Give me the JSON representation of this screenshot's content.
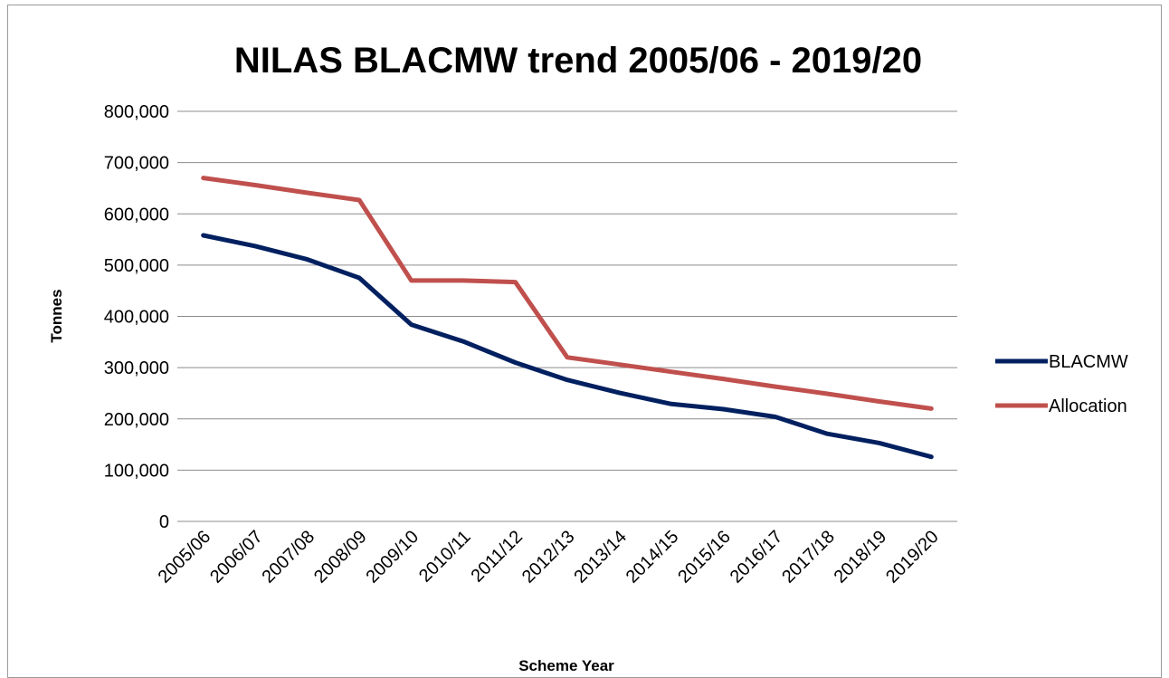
{
  "chart_data": {
    "type": "line",
    "title": "NILAS BLACMW trend 2005/06 - 2019/20",
    "xlabel": "Scheme Year",
    "ylabel": "Tonnes",
    "ylim": [
      0,
      800000
    ],
    "yticks": [
      0,
      100000,
      200000,
      300000,
      400000,
      500000,
      600000,
      700000,
      800000
    ],
    "ytick_labels": [
      "0",
      "100,000",
      "200,000",
      "300,000",
      "400,000",
      "500,000",
      "600,000",
      "700,000",
      "800,000"
    ],
    "grid": true,
    "legend_position": "right",
    "categories": [
      "2005/06",
      "2006/07",
      "2007/08",
      "2008/09",
      "2009/10",
      "2010/11",
      "2011/12",
      "2012/13",
      "2013/14",
      "2014/15",
      "2015/16",
      "2016/17",
      "2017/18",
      "2018/19",
      "2019/20"
    ],
    "series": [
      {
        "name": "BLACMW",
        "color": "#002060",
        "values": [
          558000,
          537000,
          511000,
          475000,
          384000,
          351000,
          310000,
          276000,
          251000,
          229000,
          219000,
          204000,
          171000,
          153000,
          126000
        ]
      },
      {
        "name": "Allocation",
        "color": "#C0504D",
        "values": [
          670000,
          656000,
          641000,
          627000,
          470000,
          470000,
          467000,
          320000,
          306000,
          292000,
          278000,
          263000,
          249000,
          234000,
          220000
        ]
      }
    ]
  }
}
